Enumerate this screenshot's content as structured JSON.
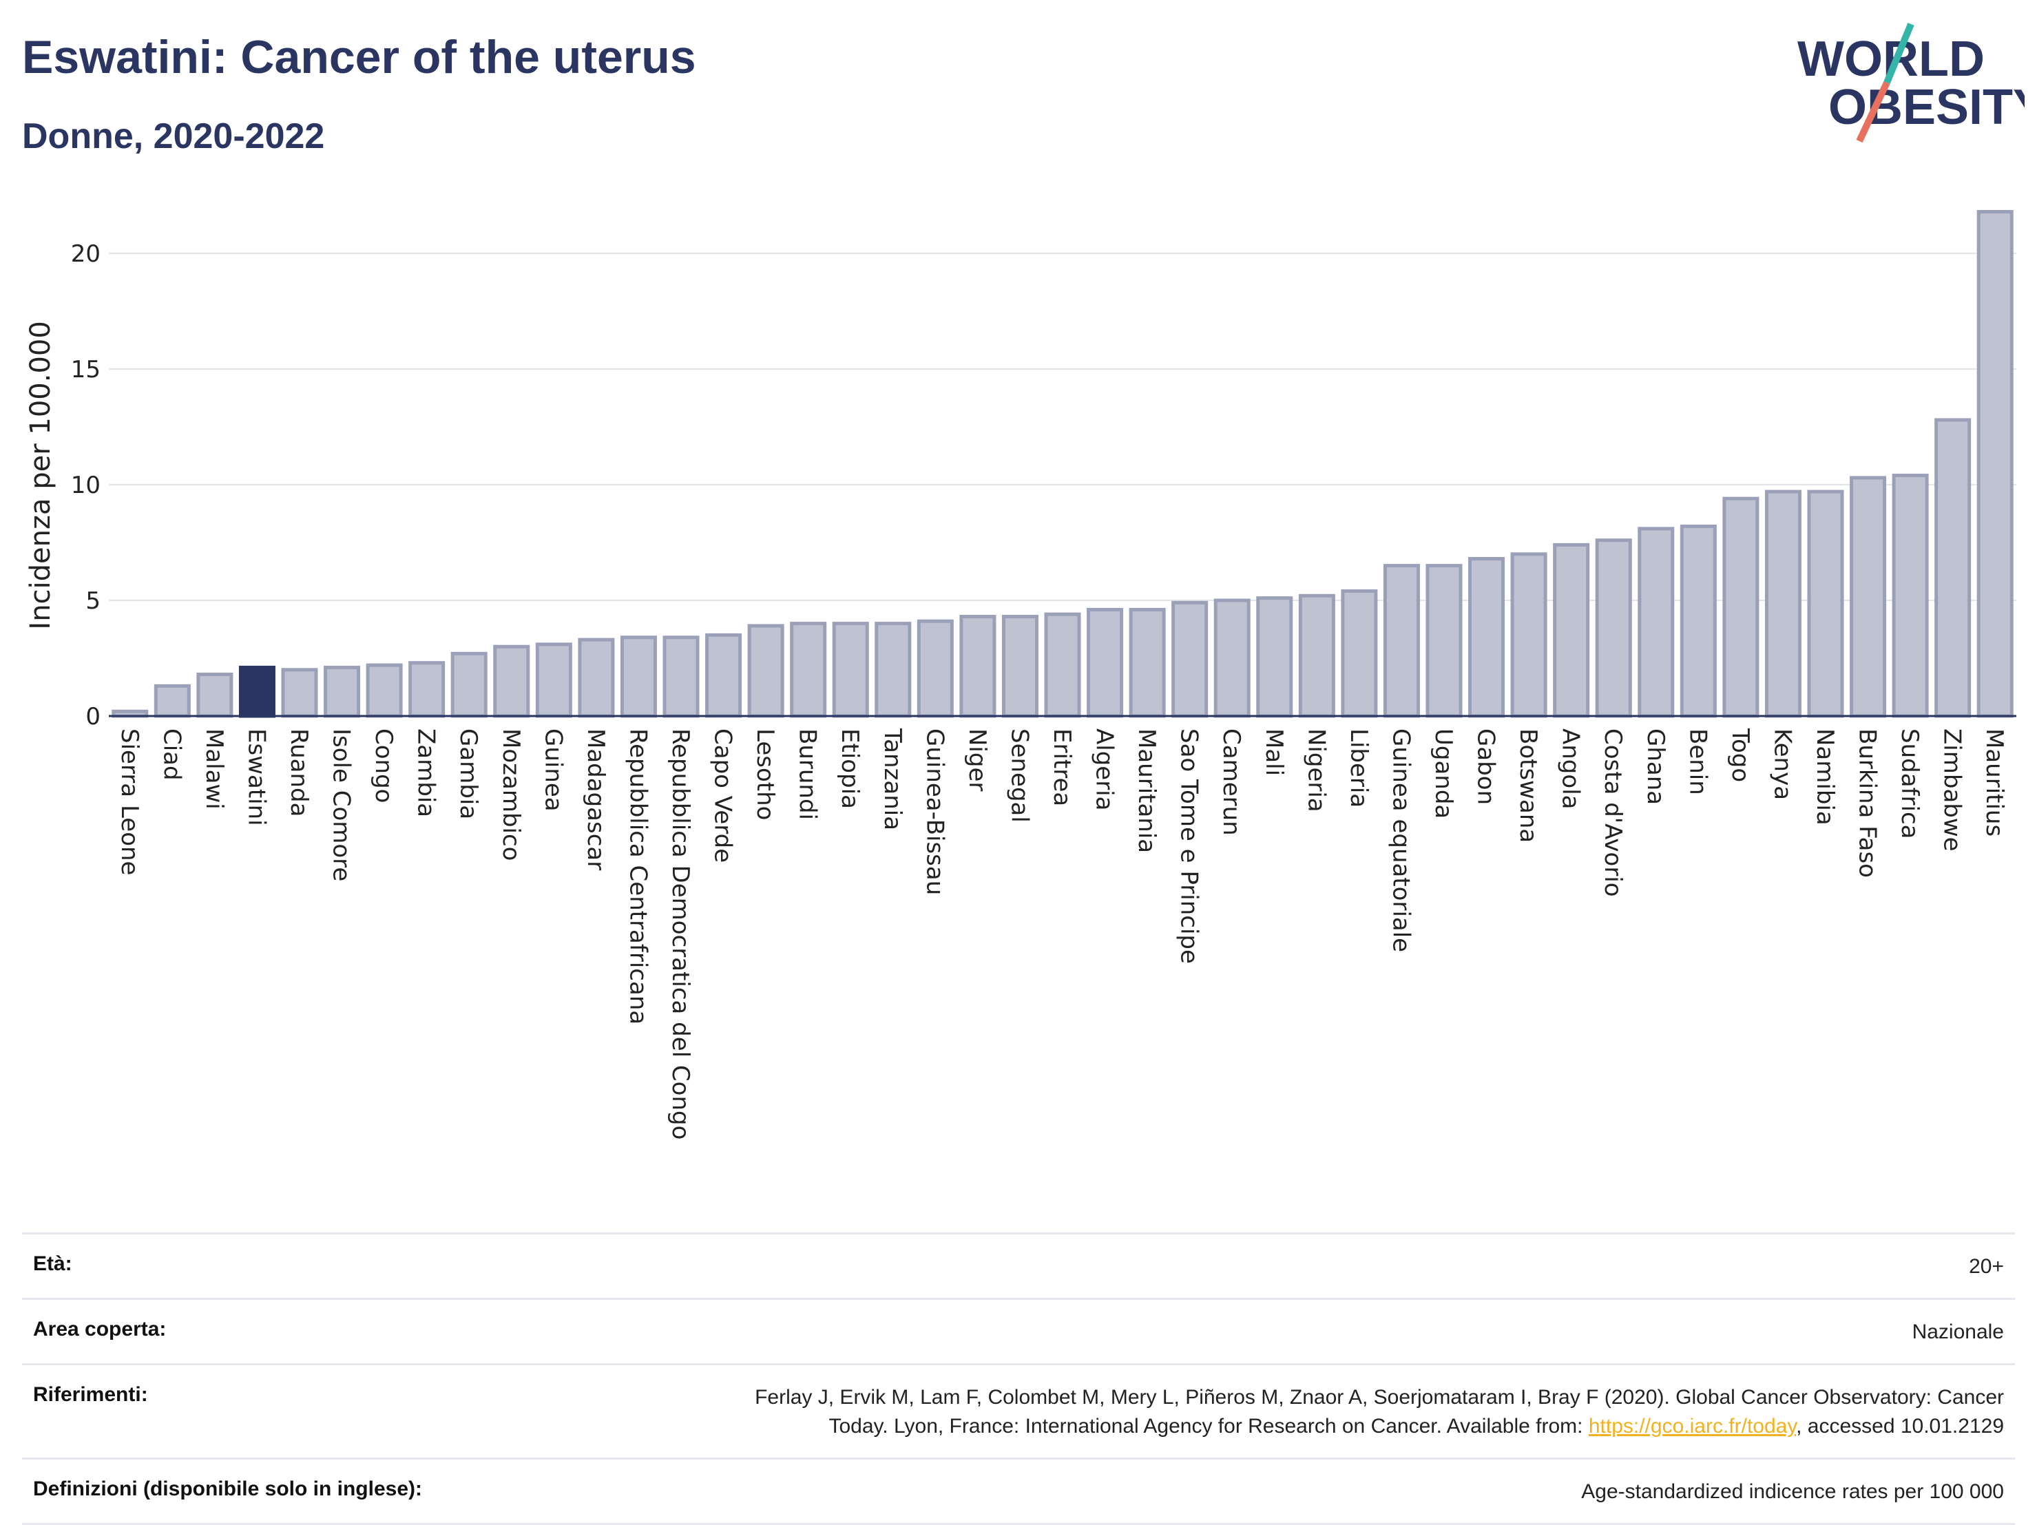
{
  "header": {
    "title": "Eswatini: Cancer of the uterus",
    "subtitle": "Donne, 2020-2022"
  },
  "logo": {
    "line1": "WORLD",
    "line2": "OBESITY",
    "accent_teal": "#35b5a8",
    "accent_coral": "#e8705e",
    "text_color": "#2a3561"
  },
  "chart_data": {
    "type": "bar",
    "ylabel": "Incidenza per 100.000",
    "xlabel": "",
    "ylim": [
      0,
      22
    ],
    "yticks": [
      0,
      5,
      10,
      15,
      20
    ],
    "grid": true,
    "highlight": "Eswatini",
    "highlight_color": "#2a3561",
    "bar_color": "#bfc3d1",
    "bar_border_color": "#9aa0b8",
    "categories": [
      "Sierra Leone",
      "Ciad",
      "Malawi",
      "Eswatini",
      "Ruanda",
      "Isole Comore",
      "Congo",
      "Zambia",
      "Gambia",
      "Mozambico",
      "Guinea",
      "Madagascar",
      "Repubblica Centrafricana",
      "Repubblica Democratica del Congo",
      "Capo Verde",
      "Lesotho",
      "Burundi",
      "Etiopia",
      "Tanzania",
      "Guinea-Bissau",
      "Niger",
      "Senegal",
      "Eritrea",
      "Algeria",
      "Mauritania",
      "Sao Tome e Principe",
      "Camerun",
      "Mali",
      "Nigeria",
      "Liberia",
      "Guinea equatoriale",
      "Uganda",
      "Gabon",
      "Botswana",
      "Angola",
      "Costa d'Avorio",
      "Ghana",
      "Benin",
      "Togo",
      "Kenya",
      "Namibia",
      "Burkina Faso",
      "Sudafrica",
      "Zimbabwe",
      "Mauritius"
    ],
    "values": [
      0.2,
      1.3,
      1.8,
      2.1,
      2.0,
      2.1,
      2.2,
      2.3,
      2.7,
      3.0,
      3.1,
      3.3,
      3.4,
      3.4,
      3.5,
      3.9,
      4.0,
      4.0,
      4.0,
      4.1,
      4.3,
      4.3,
      4.4,
      4.6,
      4.6,
      4.9,
      5.0,
      5.1,
      5.2,
      5.4,
      6.5,
      6.5,
      6.8,
      7.0,
      7.4,
      7.6,
      8.1,
      8.2,
      9.4,
      9.7,
      9.7,
      10.3,
      10.4,
      12.8,
      21.8
    ]
  },
  "meta": {
    "age_label": "Età:",
    "age_value": "20+",
    "area_label": "Area coperta:",
    "area_value": "Nazionale",
    "ref_label": "Riferimenti:",
    "ref_text_1": "Ferlay J, Ervik M, Lam F, Colombet M, Mery L, Piñeros M, Znaor A, Soerjomataram I, Bray F (2020). Global Cancer Observatory: Cancer",
    "ref_text_2": "Today. Lyon, France: International Agency for Research on Cancer. Available from: ",
    "ref_link": "https://gco.iarc.fr/today",
    "ref_text_3": ", accessed 10.01.2129",
    "def_label": "Definizioni (disponibile solo in inglese):",
    "def_value": "Age-standardized indicence rates per 100 000"
  }
}
